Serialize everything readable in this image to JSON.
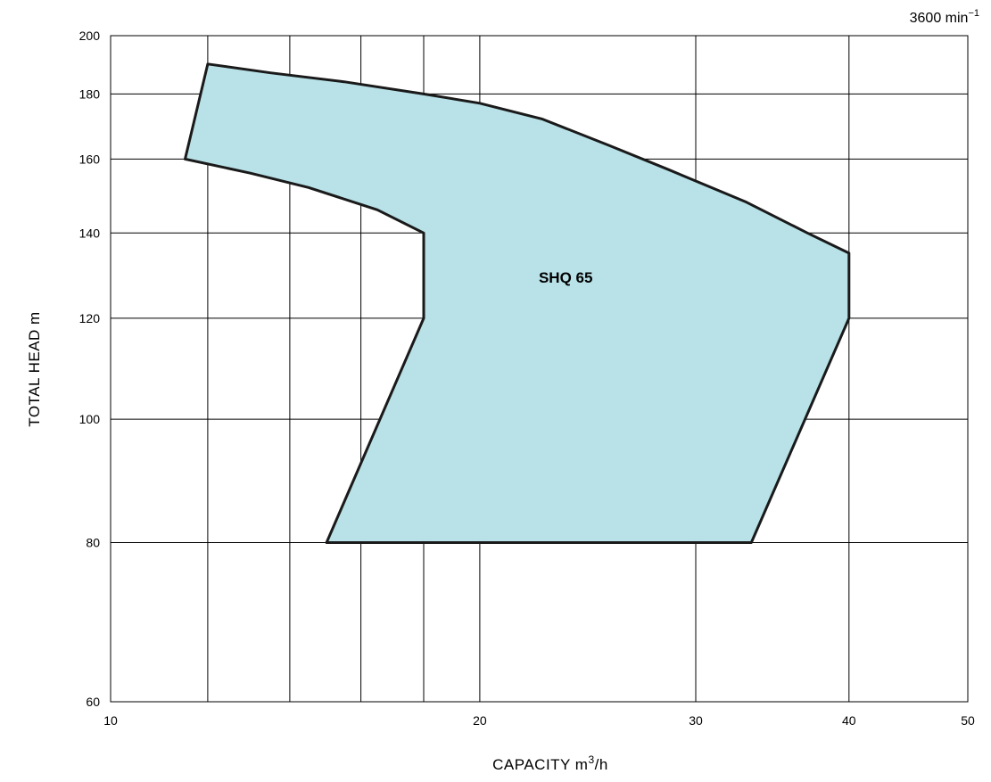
{
  "chart_data": {
    "type": "area",
    "x_scale": "log",
    "y_scale": "log",
    "xlim": [
      10,
      50
    ],
    "ylim": [
      60,
      200
    ],
    "x_ticks": [
      10,
      20,
      30,
      40,
      50
    ],
    "x_tick_labels": [
      "10",
      "20",
      "30",
      "40",
      "50"
    ],
    "x_grid": [
      12,
      14,
      16,
      18,
      20,
      30,
      40,
      50
    ],
    "y_ticks": [
      60,
      80,
      100,
      120,
      140,
      160,
      180,
      200
    ],
    "y_tick_labels": [
      "60",
      "80",
      "100",
      "120",
      "140",
      "160",
      "180",
      "200"
    ],
    "grid": true,
    "xlabel_main": "CAPACITY  m",
    "xlabel_sup": "3",
    "xlabel_tail": "/h",
    "ylabel": "TOTAL HEAD  m",
    "speed_main": "3600 min",
    "speed_sup": "−1",
    "fill_color": "#b8e2e8",
    "stroke_color": "#1a1a1a",
    "series": [
      {
        "name": "SHQ 65",
        "label_at": [
          23.5,
          128
        ],
        "points": [
          [
            12.0,
            190
          ],
          [
            13.5,
            187
          ],
          [
            15.5,
            184
          ],
          [
            18.0,
            180
          ],
          [
            20.0,
            177
          ],
          [
            22.5,
            172
          ],
          [
            25.5,
            164
          ],
          [
            28.5,
            157
          ],
          [
            33.0,
            148
          ],
          [
            37.0,
            140
          ],
          [
            40.0,
            135
          ],
          [
            40.0,
            120
          ],
          [
            33.3,
            80
          ],
          [
            15.0,
            80
          ],
          [
            18.0,
            120
          ],
          [
            18.0,
            140
          ],
          [
            16.5,
            146
          ],
          [
            14.5,
            152
          ],
          [
            13.0,
            156
          ],
          [
            11.5,
            160
          ]
        ]
      }
    ]
  }
}
